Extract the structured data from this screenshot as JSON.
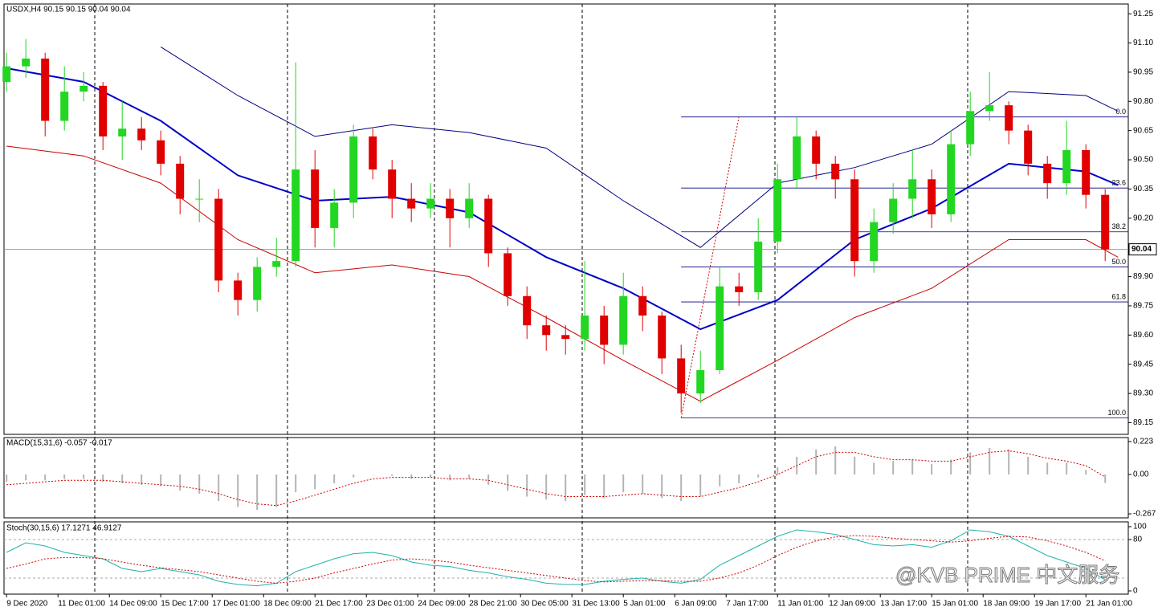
{
  "chart_data": [
    {
      "type": "candlestick",
      "title": "USDX,H4  90.15 90.15 90.04 90.04",
      "up_color": "#22d622",
      "down_color": "#e00000",
      "x": [
        0,
        3,
        6,
        9,
        12,
        15,
        18,
        21,
        24,
        27,
        30,
        33,
        36,
        39,
        42,
        45,
        48,
        51,
        54,
        57,
        60,
        63,
        66,
        69,
        72,
        75,
        78,
        81,
        84,
        87,
        90,
        93,
        96,
        99,
        102,
        105,
        108,
        111,
        114,
        117,
        120,
        123,
        126,
        129,
        132,
        135,
        138,
        141,
        144,
        147,
        150,
        153,
        156,
        159,
        162,
        165,
        168,
        171
      ],
      "open": [
        90.9,
        90.98,
        91.02,
        90.7,
        90.85,
        90.88,
        90.62,
        90.66,
        90.6,
        90.48,
        90.3,
        90.3,
        89.88,
        89.78,
        89.95,
        89.98,
        90.45,
        90.15,
        90.28,
        90.62,
        90.45,
        90.3,
        90.25,
        90.3,
        90.2,
        90.3,
        90.02,
        89.8,
        89.65,
        89.6,
        89.58,
        89.7,
        89.55,
        89.8,
        89.7,
        89.48,
        89.3,
        89.42,
        89.85,
        89.82,
        90.08,
        90.4,
        90.62,
        90.48,
        90.4,
        89.98,
        90.18,
        90.3,
        90.4,
        90.22,
        90.58,
        90.75,
        90.78,
        90.65,
        90.48,
        90.38,
        90.55,
        90.32
      ],
      "high": [
        91.05,
        91.12,
        91.05,
        90.98,
        90.95,
        90.9,
        90.8,
        90.72,
        90.65,
        90.52,
        90.4,
        90.35,
        89.92,
        90.0,
        90.1,
        91.0,
        90.55,
        90.35,
        90.68,
        90.66,
        90.5,
        90.38,
        90.38,
        90.35,
        90.38,
        90.32,
        90.05,
        89.85,
        89.7,
        89.65,
        89.98,
        89.75,
        89.92,
        89.85,
        89.72,
        89.55,
        89.52,
        89.95,
        89.92,
        90.2,
        90.48,
        90.72,
        90.65,
        90.52,
        90.45,
        90.25,
        90.38,
        90.55,
        90.45,
        90.65,
        90.85,
        90.95,
        90.8,
        90.68,
        90.52,
        90.7,
        90.58,
        90.35
      ],
      "low": [
        90.85,
        90.92,
        90.62,
        90.65,
        90.8,
        90.55,
        90.5,
        90.55,
        90.42,
        90.22,
        90.18,
        89.82,
        89.7,
        89.72,
        89.9,
        89.95,
        90.05,
        90.05,
        90.2,
        90.4,
        90.2,
        90.18,
        90.2,
        90.05,
        90.15,
        89.95,
        89.75,
        89.58,
        89.52,
        89.5,
        89.52,
        89.45,
        89.5,
        89.62,
        89.4,
        89.2,
        89.25,
        89.4,
        89.75,
        89.78,
        90.02,
        90.35,
        90.4,
        90.3,
        89.9,
        89.92,
        90.12,
        90.2,
        90.15,
        90.18,
        90.52,
        90.7,
        90.58,
        90.42,
        90.3,
        90.32,
        90.25,
        89.98
      ],
      "close": [
        90.98,
        91.02,
        90.7,
        90.85,
        90.88,
        90.62,
        90.66,
        90.6,
        90.48,
        90.3,
        90.3,
        89.88,
        89.78,
        89.95,
        89.98,
        90.45,
        90.15,
        90.28,
        90.62,
        90.45,
        90.3,
        90.25,
        90.3,
        90.2,
        90.3,
        90.02,
        89.8,
        89.65,
        89.6,
        89.58,
        89.7,
        89.55,
        89.8,
        89.7,
        89.48,
        89.3,
        89.42,
        89.85,
        89.82,
        90.08,
        90.4,
        90.62,
        90.48,
        90.4,
        89.98,
        90.18,
        90.3,
        90.4,
        90.22,
        90.58,
        90.75,
        90.78,
        90.65,
        90.48,
        90.38,
        90.55,
        90.32,
        90.04
      ],
      "overlay_x": [
        0,
        12,
        24,
        36,
        48,
        60,
        72,
        84,
        96,
        108,
        120,
        132,
        144,
        156,
        168,
        173
      ],
      "overlays": [
        {
          "color": "#0000c8",
          "values": [
            90.97,
            90.9,
            90.7,
            90.42,
            90.29,
            90.31,
            90.23,
            90.0,
            89.84,
            89.63,
            89.78,
            90.09,
            90.25,
            90.48,
            90.44,
            90.37
          ]
        },
        {
          "color": "#000080",
          "values": [
            null,
            null,
            91.08,
            90.83,
            90.62,
            90.68,
            90.64,
            90.56,
            90.29,
            90.05,
            90.38,
            90.46,
            90.58,
            90.85,
            90.83,
            90.75
          ]
        },
        {
          "color": "#c80000",
          "values": [
            90.57,
            90.52,
            90.38,
            90.09,
            89.92,
            89.96,
            89.9,
            89.69,
            89.47,
            89.26,
            89.47,
            89.69,
            89.84,
            90.09,
            90.09,
            90.0
          ]
        }
      ],
      "fib_x": [
        105,
        114
      ],
      "fibonacci": [
        {
          "value": 90.72,
          "label": "0.0"
        },
        {
          "value": 90.355,
          "label": "23.6"
        },
        {
          "value": 90.13,
          "label": "38.2"
        },
        {
          "value": 89.95,
          "label": "50.0"
        },
        {
          "value": 89.77,
          "label": "61.8"
        },
        {
          "value": 89.175,
          "label": "100.0"
        }
      ],
      "last_price": {
        "value": 90.04,
        "label": "90.04"
      },
      "xlim": [
        -0.4,
        174.6
      ],
      "ylim": [
        89.09,
        91.3
      ],
      "yticks": [
        91.25,
        {
          "value": 91.1,
          "label": "91.10"
        },
        90.95,
        {
          "value": 90.8,
          "label": "90.80"
        },
        90.65,
        {
          "value": 90.5,
          "label": "90.50"
        },
        90.35,
        {
          "value": 90.2,
          "label": "90.20"
        },
        {
          "value": 89.9,
          "label": "89.90"
        },
        89.75,
        {
          "value": 89.6,
          "label": "89.60"
        },
        89.45,
        {
          "value": 89.3,
          "label": "89.30"
        },
        89.15
      ],
      "xticks": [
        {
          "value": 0,
          "label": "9 Dec 2020"
        },
        {
          "value": 8,
          "label": "11 Dec 01:00"
        },
        {
          "value": 16,
          "label": "14 Dec 09:00"
        },
        {
          "value": 24,
          "label": "15 Dec 17:00"
        },
        {
          "value": 32,
          "label": "17 Dec 01:00"
        },
        {
          "value": 40,
          "label": "18 Dec 09:00"
        },
        {
          "value": 48,
          "label": "21 Dec 17:00"
        },
        {
          "value": 56,
          "label": "23 Dec 01:00"
        },
        {
          "value": 64,
          "label": "24 Dec 09:00"
        },
        {
          "value": 72,
          "label": "28 Dec 21:00"
        },
        {
          "value": 80,
          "label": "30 Dec 05:00"
        },
        {
          "value": 88,
          "label": "31 Dec 13:00"
        },
        {
          "value": 96,
          "label": "5 Jan 01:00"
        },
        {
          "value": 104,
          "label": "6 Jan 09:00"
        },
        {
          "value": 112,
          "label": "7 Jan 17:00"
        },
        {
          "value": 120,
          "label": "11 Jan 01:00"
        },
        {
          "value": 128,
          "label": "12 Jan 09:00"
        },
        {
          "value": 136,
          "label": "13 Jan 17:00"
        },
        {
          "value": 144,
          "label": "15 Jan 01:00"
        },
        {
          "value": 152,
          "label": "18 Jan 09:00"
        },
        {
          "value": 160,
          "label": "19 Jan 17:00"
        },
        {
          "value": 168,
          "label": "21 Jan 01:00"
        }
      ]
    },
    {
      "type": "macd",
      "title": "MACD(15,31,6) -0.057 -0.017",
      "histogram_color": "#b4b4b4",
      "signal_color": "#d00000",
      "histogram": [
        -0.05,
        -0.04,
        -0.04,
        -0.03,
        -0.03,
        -0.05,
        -0.06,
        -0.07,
        -0.08,
        -0.11,
        -0.13,
        -0.18,
        -0.22,
        -0.24,
        -0.22,
        -0.12,
        -0.1,
        -0.06,
        -0.02,
        0.0,
        -0.01,
        -0.03,
        -0.02,
        -0.04,
        -0.03,
        -0.07,
        -0.11,
        -0.15,
        -0.17,
        -0.18,
        -0.14,
        -0.16,
        -0.12,
        -0.13,
        -0.16,
        -0.18,
        -0.15,
        -0.08,
        -0.06,
        -0.02,
        0.05,
        0.12,
        0.17,
        0.19,
        0.12,
        0.08,
        0.09,
        0.1,
        0.07,
        0.1,
        0.15,
        0.18,
        0.17,
        0.12,
        0.08,
        0.08,
        0.03,
        -0.057
      ],
      "signal": [
        -0.07,
        -0.06,
        -0.05,
        -0.04,
        -0.04,
        -0.04,
        -0.05,
        -0.06,
        -0.07,
        -0.08,
        -0.1,
        -0.13,
        -0.17,
        -0.2,
        -0.21,
        -0.18,
        -0.14,
        -0.1,
        -0.06,
        -0.03,
        -0.02,
        -0.02,
        -0.02,
        -0.03,
        -0.03,
        -0.04,
        -0.07,
        -0.1,
        -0.13,
        -0.15,
        -0.15,
        -0.15,
        -0.14,
        -0.13,
        -0.14,
        -0.15,
        -0.15,
        -0.12,
        -0.09,
        -0.05,
        0.0,
        0.06,
        0.12,
        0.15,
        0.15,
        0.12,
        0.1,
        0.1,
        0.09,
        0.09,
        0.12,
        0.15,
        0.16,
        0.14,
        0.11,
        0.09,
        0.06,
        -0.017
      ],
      "ylim": [
        -0.294,
        0.25
      ],
      "yticks": [
        0.223,
        {
          "value": 0,
          "label": "0.00"
        },
        -0.267
      ]
    },
    {
      "type": "stochastic",
      "title": "Stoch(30,15,6) 17.1271 46.9127",
      "main_color": "#20b2aa",
      "signal_color": "#d00000",
      "main": [
        60,
        75,
        70,
        60,
        55,
        50,
        35,
        30,
        35,
        30,
        25,
        15,
        10,
        8,
        12,
        30,
        40,
        50,
        58,
        60,
        55,
        45,
        40,
        38,
        32,
        28,
        22,
        18,
        12,
        10,
        10,
        15,
        18,
        20,
        15,
        12,
        18,
        40,
        55,
        70,
        85,
        95,
        92,
        88,
        80,
        72,
        70,
        72,
        68,
        78,
        95,
        92,
        85,
        70,
        55,
        45,
        35,
        17.1271
      ],
      "signal": [
        35,
        42,
        50,
        52,
        52,
        50,
        45,
        40,
        36,
        33,
        30,
        25,
        20,
        15,
        12,
        15,
        20,
        28,
        35,
        42,
        48,
        50,
        48,
        45,
        40,
        36,
        32,
        28,
        24,
        20,
        16,
        14,
        15,
        16,
        16,
        15,
        15,
        20,
        28,
        40,
        55,
        68,
        78,
        84,
        86,
        85,
        82,
        80,
        78,
        76,
        78,
        82,
        85,
        84,
        78,
        70,
        60,
        46.9127
      ],
      "levels": [
        80,
        20
      ],
      "ylim": [
        -5,
        107.5
      ],
      "yticks": [
        100,
        80,
        0
      ]
    }
  ],
  "watermark": "@KVB PRIME 中文服务"
}
